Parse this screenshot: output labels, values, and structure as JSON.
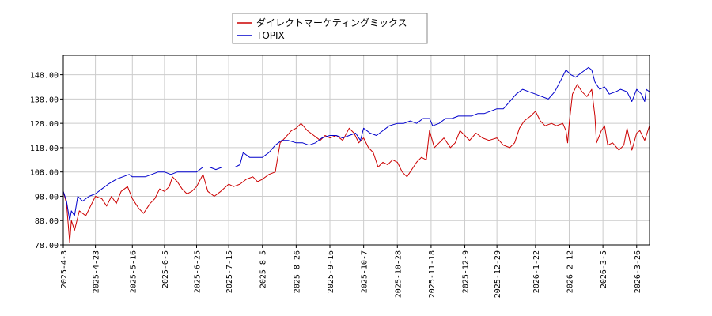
{
  "chart_data": {
    "type": "line",
    "title": "",
    "xlabel": "",
    "ylabel": "",
    "x_range": [
      "2025-04-03",
      "2026-04-03"
    ],
    "ylim": [
      78.0,
      156.0
    ],
    "grid": true,
    "legend_placement": "top-center",
    "y_ticks": [
      "78.00",
      "88.00",
      "98.00",
      "108.00",
      "118.00",
      "128.00",
      "138.00",
      "148.00"
    ],
    "x_ticks": [
      "2025-4-3",
      "2025-4-23",
      "2025-5-16",
      "2025-6-5",
      "2025-6-25",
      "2025-7-15",
      "2025-8-5",
      "2025-8-26",
      "2025-9-16",
      "2025-10-7",
      "2025-10-28",
      "2025-11-18",
      "2025-12-9",
      "2025-12-29",
      "2026-1-22",
      "2026-2-12",
      "2026-3-5",
      "2026-3-26"
    ],
    "series": [
      {
        "name": "ダイレクトマーケティングミックス",
        "color": "#cc0000",
        "points": [
          [
            "2025-04-03",
            100
          ],
          [
            "2025-04-05",
            95
          ],
          [
            "2025-04-07",
            79
          ],
          [
            "2025-04-08",
            88
          ],
          [
            "2025-04-10",
            84
          ],
          [
            "2025-04-13",
            92
          ],
          [
            "2025-04-17",
            90
          ],
          [
            "2025-04-20",
            94
          ],
          [
            "2025-04-23",
            98
          ],
          [
            "2025-04-27",
            97
          ],
          [
            "2025-04-30",
            94
          ],
          [
            "2025-05-03",
            98
          ],
          [
            "2025-05-06",
            95
          ],
          [
            "2025-05-09",
            100
          ],
          [
            "2025-05-13",
            102
          ],
          [
            "2025-05-16",
            97
          ],
          [
            "2025-05-20",
            93
          ],
          [
            "2025-05-23",
            91
          ],
          [
            "2025-05-27",
            95
          ],
          [
            "2025-05-30",
            97
          ],
          [
            "2025-06-02",
            101
          ],
          [
            "2025-06-05",
            100
          ],
          [
            "2025-06-08",
            102
          ],
          [
            "2025-06-10",
            106
          ],
          [
            "2025-06-13",
            104
          ],
          [
            "2025-06-16",
            101
          ],
          [
            "2025-06-19",
            99
          ],
          [
            "2025-06-22",
            100
          ],
          [
            "2025-06-25",
            102
          ],
          [
            "2025-06-29",
            107
          ],
          [
            "2025-07-02",
            100
          ],
          [
            "2025-07-06",
            98
          ],
          [
            "2025-07-10",
            100
          ],
          [
            "2025-07-15",
            103
          ],
          [
            "2025-07-18",
            102
          ],
          [
            "2025-07-22",
            103
          ],
          [
            "2025-07-26",
            105
          ],
          [
            "2025-07-30",
            106
          ],
          [
            "2025-08-02",
            104
          ],
          [
            "2025-08-05",
            105
          ],
          [
            "2025-08-09",
            107
          ],
          [
            "2025-08-13",
            108
          ],
          [
            "2025-08-16",
            120
          ],
          [
            "2025-08-19",
            122
          ],
          [
            "2025-08-23",
            125
          ],
          [
            "2025-08-26",
            126
          ],
          [
            "2025-08-29",
            128
          ],
          [
            "2025-09-02",
            125
          ],
          [
            "2025-09-06",
            123
          ],
          [
            "2025-09-10",
            121
          ],
          [
            "2025-09-13",
            123
          ],
          [
            "2025-09-16",
            122
          ],
          [
            "2025-09-20",
            123
          ],
          [
            "2025-09-24",
            121
          ],
          [
            "2025-09-28",
            126
          ],
          [
            "2025-10-01",
            124
          ],
          [
            "2025-10-04",
            120
          ],
          [
            "2025-10-07",
            122
          ],
          [
            "2025-10-10",
            118
          ],
          [
            "2025-10-13",
            116
          ],
          [
            "2025-10-16",
            110
          ],
          [
            "2025-10-19",
            112
          ],
          [
            "2025-10-22",
            111
          ],
          [
            "2025-10-25",
            113
          ],
          [
            "2025-10-28",
            112
          ],
          [
            "2025-10-31",
            108
          ],
          [
            "2025-11-03",
            106
          ],
          [
            "2025-11-06",
            109
          ],
          [
            "2025-11-09",
            112
          ],
          [
            "2025-11-12",
            114
          ],
          [
            "2025-11-15",
            113
          ],
          [
            "2025-11-17",
            125
          ],
          [
            "2025-11-20",
            118
          ],
          [
            "2025-11-23",
            120
          ],
          [
            "2025-11-26",
            122
          ],
          [
            "2025-11-30",
            118
          ],
          [
            "2025-12-03",
            120
          ],
          [
            "2025-12-06",
            125
          ],
          [
            "2025-12-09",
            123
          ],
          [
            "2025-12-12",
            121
          ],
          [
            "2025-12-16",
            124
          ],
          [
            "2025-12-20",
            122
          ],
          [
            "2025-12-24",
            121
          ],
          [
            "2025-12-29",
            122
          ],
          [
            "2026-01-02",
            119
          ],
          [
            "2026-01-06",
            118
          ],
          [
            "2026-01-09",
            120
          ],
          [
            "2026-01-12",
            126
          ],
          [
            "2026-01-15",
            129
          ],
          [
            "2026-01-19",
            131
          ],
          [
            "2026-01-22",
            133
          ],
          [
            "2026-01-25",
            129
          ],
          [
            "2026-01-28",
            127
          ],
          [
            "2026-02-01",
            128
          ],
          [
            "2026-02-04",
            127
          ],
          [
            "2026-02-08",
            128
          ],
          [
            "2026-02-10",
            125
          ],
          [
            "2026-02-11",
            120
          ],
          [
            "2026-02-12",
            128
          ],
          [
            "2026-02-14",
            140
          ],
          [
            "2026-02-17",
            144
          ],
          [
            "2026-02-20",
            141
          ],
          [
            "2026-02-23",
            139
          ],
          [
            "2026-02-26",
            142
          ],
          [
            "2026-02-28",
            131
          ],
          [
            "2026-03-01",
            120
          ],
          [
            "2026-03-04",
            125
          ],
          [
            "2026-03-06",
            127
          ],
          [
            "2026-03-08",
            119
          ],
          [
            "2026-03-11",
            120
          ],
          [
            "2026-03-15",
            117
          ],
          [
            "2026-03-18",
            119
          ],
          [
            "2026-03-20",
            126
          ],
          [
            "2026-03-23",
            117
          ],
          [
            "2026-03-26",
            124
          ],
          [
            "2026-03-28",
            125
          ],
          [
            "2026-03-31",
            121
          ],
          [
            "2026-04-03",
            127
          ]
        ]
      },
      {
        "name": "TOPIX",
        "color": "#0000cc",
        "points": [
          [
            "2025-04-03",
            100
          ],
          [
            "2025-04-05",
            96
          ],
          [
            "2025-04-07",
            88
          ],
          [
            "2025-04-08",
            92
          ],
          [
            "2025-04-10",
            90
          ],
          [
            "2025-04-12",
            98
          ],
          [
            "2025-04-15",
            96
          ],
          [
            "2025-04-19",
            98
          ],
          [
            "2025-04-23",
            99
          ],
          [
            "2025-04-27",
            101
          ],
          [
            "2025-05-01",
            103
          ],
          [
            "2025-05-06",
            105
          ],
          [
            "2025-05-10",
            106
          ],
          [
            "2025-05-14",
            107
          ],
          [
            "2025-05-16",
            106
          ],
          [
            "2025-05-20",
            106
          ],
          [
            "2025-05-24",
            106
          ],
          [
            "2025-05-28",
            107
          ],
          [
            "2025-06-01",
            108
          ],
          [
            "2025-06-05",
            108
          ],
          [
            "2025-06-09",
            107
          ],
          [
            "2025-06-13",
            108
          ],
          [
            "2025-06-17",
            108
          ],
          [
            "2025-06-21",
            108
          ],
          [
            "2025-06-25",
            108
          ],
          [
            "2025-06-29",
            110
          ],
          [
            "2025-07-03",
            110
          ],
          [
            "2025-07-07",
            109
          ],
          [
            "2025-07-11",
            110
          ],
          [
            "2025-07-15",
            110
          ],
          [
            "2025-07-19",
            110
          ],
          [
            "2025-07-22",
            111
          ],
          [
            "2025-07-24",
            116
          ],
          [
            "2025-07-28",
            114
          ],
          [
            "2025-08-01",
            114
          ],
          [
            "2025-08-05",
            114
          ],
          [
            "2025-08-09",
            116
          ],
          [
            "2025-08-13",
            119
          ],
          [
            "2025-08-17",
            121
          ],
          [
            "2025-08-21",
            121
          ],
          [
            "2025-08-26",
            120
          ],
          [
            "2025-08-30",
            120
          ],
          [
            "2025-09-03",
            119
          ],
          [
            "2025-09-07",
            120
          ],
          [
            "2025-09-11",
            122
          ],
          [
            "2025-09-16",
            123
          ],
          [
            "2025-09-20",
            123
          ],
          [
            "2025-09-24",
            122
          ],
          [
            "2025-09-28",
            123
          ],
          [
            "2025-10-02",
            124
          ],
          [
            "2025-10-05",
            121
          ],
          [
            "2025-10-07",
            126
          ],
          [
            "2025-10-11",
            124
          ],
          [
            "2025-10-15",
            123
          ],
          [
            "2025-10-19",
            125
          ],
          [
            "2025-10-23",
            127
          ],
          [
            "2025-10-28",
            128
          ],
          [
            "2025-11-01",
            128
          ],
          [
            "2025-11-05",
            129
          ],
          [
            "2025-11-09",
            128
          ],
          [
            "2025-11-13",
            130
          ],
          [
            "2025-11-17",
            130
          ],
          [
            "2025-11-19",
            127
          ],
          [
            "2025-11-23",
            128
          ],
          [
            "2025-11-27",
            130
          ],
          [
            "2025-12-01",
            130
          ],
          [
            "2025-12-05",
            131
          ],
          [
            "2025-12-09",
            131
          ],
          [
            "2025-12-13",
            131
          ],
          [
            "2025-12-17",
            132
          ],
          [
            "2025-12-21",
            132
          ],
          [
            "2025-12-25",
            133
          ],
          [
            "2025-12-29",
            134
          ],
          [
            "2026-01-02",
            134
          ],
          [
            "2026-01-06",
            137
          ],
          [
            "2026-01-10",
            140
          ],
          [
            "2026-01-14",
            142
          ],
          [
            "2026-01-18",
            141
          ],
          [
            "2026-01-22",
            140
          ],
          [
            "2026-01-26",
            139
          ],
          [
            "2026-01-30",
            138
          ],
          [
            "2026-02-03",
            141
          ],
          [
            "2026-02-07",
            146
          ],
          [
            "2026-02-10",
            150
          ],
          [
            "2026-02-13",
            148
          ],
          [
            "2026-02-16",
            147
          ],
          [
            "2026-02-20",
            149
          ],
          [
            "2026-02-24",
            151
          ],
          [
            "2026-02-26",
            150
          ],
          [
            "2026-02-28",
            145
          ],
          [
            "2026-03-03",
            142
          ],
          [
            "2026-03-06",
            143
          ],
          [
            "2026-03-09",
            140
          ],
          [
            "2026-03-13",
            141
          ],
          [
            "2026-03-16",
            142
          ],
          [
            "2026-03-20",
            141
          ],
          [
            "2026-03-23",
            137
          ],
          [
            "2026-03-26",
            142
          ],
          [
            "2026-03-29",
            140
          ],
          [
            "2026-03-31",
            137
          ],
          [
            "2026-04-01",
            142
          ],
          [
            "2026-04-03",
            141
          ]
        ]
      }
    ]
  }
}
